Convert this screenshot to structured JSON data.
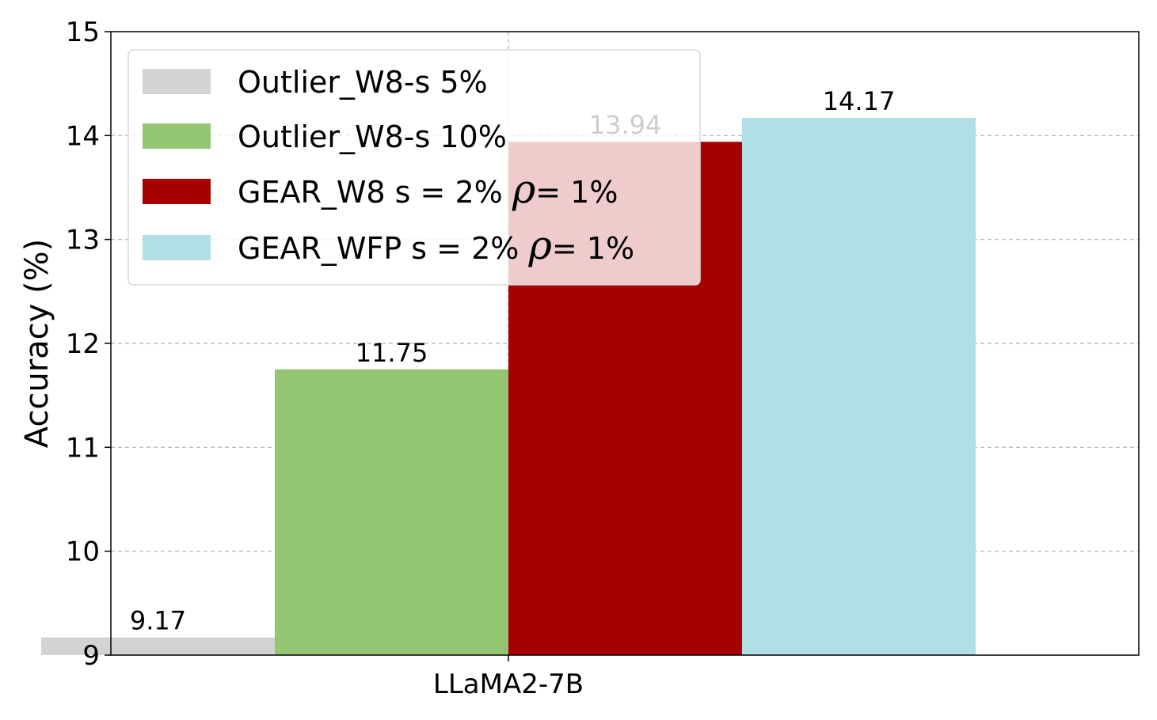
{
  "chart_data": {
    "type": "bar",
    "categories": [
      "LLaMA2-7B"
    ],
    "series": [
      {
        "name": "Outlier_W8-s 5%",
        "name_parts": [
          "Outlier_W8-s 5%",
          "",
          ""
        ],
        "values": [
          9.17
        ],
        "color": "#d3d3d3"
      },
      {
        "name": "Outlier_W8-s 10%",
        "name_parts": [
          "Outlier_W8-s 10%",
          "",
          ""
        ],
        "values": [
          11.75
        ],
        "color": "#93c572"
      },
      {
        "name": "GEAR_W8 s = 2% ρ= 1%",
        "name_parts": [
          "GEAR_W8 s = 2% ",
          "ρ",
          "= 1%"
        ],
        "values": [
          13.94
        ],
        "color": "#a80000"
      },
      {
        "name": "GEAR_WFP s = 2% ρ= 1%",
        "name_parts": [
          "GEAR_WFP s = 2% ",
          "ρ",
          "= 1%"
        ],
        "values": [
          14.17
        ],
        "color": "#b0dfe5"
      }
    ],
    "data_labels": [
      "9.17",
      "11.75",
      "13.94",
      "14.17"
    ],
    "title": "",
    "xlabel": "",
    "ylabel": "Accuracy (%)",
    "ylim": [
      9,
      15
    ],
    "yticks": [
      9,
      10,
      11,
      12,
      13,
      14,
      15
    ],
    "grid": true,
    "legend_position": "top-left"
  }
}
